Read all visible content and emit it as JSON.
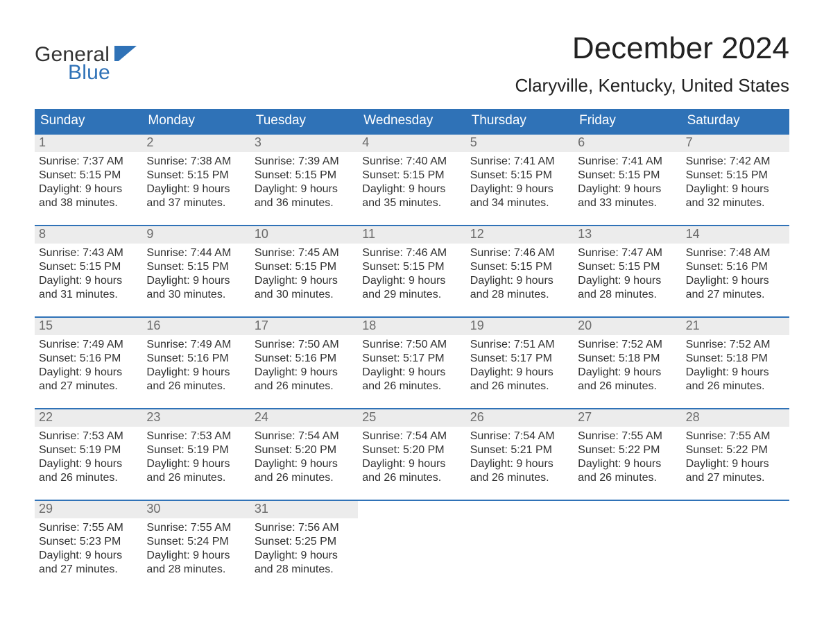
{
  "colors": {
    "accent": "#2f72b7",
    "header_text": "#ffffff",
    "day_num_bg": "#ececec",
    "day_num_color": "#6b6b6b",
    "body_text": "#313131",
    "page_bg": "#ffffff"
  },
  "logo": {
    "line1": "General",
    "line2": "Blue"
  },
  "title": "December 2024",
  "location": "Claryville, Kentucky, United States",
  "days_of_week": [
    "Sunday",
    "Monday",
    "Tuesday",
    "Wednesday",
    "Thursday",
    "Friday",
    "Saturday"
  ],
  "labels": {
    "sunrise": "Sunrise:",
    "sunset": "Sunset:",
    "daylight": "Daylight:"
  },
  "first_weekday_index": 0,
  "days": [
    {
      "n": 1,
      "sunrise": "7:37 AM",
      "sunset": "5:15 PM",
      "daylight": "9 hours and 38 minutes."
    },
    {
      "n": 2,
      "sunrise": "7:38 AM",
      "sunset": "5:15 PM",
      "daylight": "9 hours and 37 minutes."
    },
    {
      "n": 3,
      "sunrise": "7:39 AM",
      "sunset": "5:15 PM",
      "daylight": "9 hours and 36 minutes."
    },
    {
      "n": 4,
      "sunrise": "7:40 AM",
      "sunset": "5:15 PM",
      "daylight": "9 hours and 35 minutes."
    },
    {
      "n": 5,
      "sunrise": "7:41 AM",
      "sunset": "5:15 PM",
      "daylight": "9 hours and 34 minutes."
    },
    {
      "n": 6,
      "sunrise": "7:41 AM",
      "sunset": "5:15 PM",
      "daylight": "9 hours and 33 minutes."
    },
    {
      "n": 7,
      "sunrise": "7:42 AM",
      "sunset": "5:15 PM",
      "daylight": "9 hours and 32 minutes."
    },
    {
      "n": 8,
      "sunrise": "7:43 AM",
      "sunset": "5:15 PM",
      "daylight": "9 hours and 31 minutes."
    },
    {
      "n": 9,
      "sunrise": "7:44 AM",
      "sunset": "5:15 PM",
      "daylight": "9 hours and 30 minutes."
    },
    {
      "n": 10,
      "sunrise": "7:45 AM",
      "sunset": "5:15 PM",
      "daylight": "9 hours and 30 minutes."
    },
    {
      "n": 11,
      "sunrise": "7:46 AM",
      "sunset": "5:15 PM",
      "daylight": "9 hours and 29 minutes."
    },
    {
      "n": 12,
      "sunrise": "7:46 AM",
      "sunset": "5:15 PM",
      "daylight": "9 hours and 28 minutes."
    },
    {
      "n": 13,
      "sunrise": "7:47 AM",
      "sunset": "5:15 PM",
      "daylight": "9 hours and 28 minutes."
    },
    {
      "n": 14,
      "sunrise": "7:48 AM",
      "sunset": "5:16 PM",
      "daylight": "9 hours and 27 minutes."
    },
    {
      "n": 15,
      "sunrise": "7:49 AM",
      "sunset": "5:16 PM",
      "daylight": "9 hours and 27 minutes."
    },
    {
      "n": 16,
      "sunrise": "7:49 AM",
      "sunset": "5:16 PM",
      "daylight": "9 hours and 26 minutes."
    },
    {
      "n": 17,
      "sunrise": "7:50 AM",
      "sunset": "5:16 PM",
      "daylight": "9 hours and 26 minutes."
    },
    {
      "n": 18,
      "sunrise": "7:50 AM",
      "sunset": "5:17 PM",
      "daylight": "9 hours and 26 minutes."
    },
    {
      "n": 19,
      "sunrise": "7:51 AM",
      "sunset": "5:17 PM",
      "daylight": "9 hours and 26 minutes."
    },
    {
      "n": 20,
      "sunrise": "7:52 AM",
      "sunset": "5:18 PM",
      "daylight": "9 hours and 26 minutes."
    },
    {
      "n": 21,
      "sunrise": "7:52 AM",
      "sunset": "5:18 PM",
      "daylight": "9 hours and 26 minutes."
    },
    {
      "n": 22,
      "sunrise": "7:53 AM",
      "sunset": "5:19 PM",
      "daylight": "9 hours and 26 minutes."
    },
    {
      "n": 23,
      "sunrise": "7:53 AM",
      "sunset": "5:19 PM",
      "daylight": "9 hours and 26 minutes."
    },
    {
      "n": 24,
      "sunrise": "7:54 AM",
      "sunset": "5:20 PM",
      "daylight": "9 hours and 26 minutes."
    },
    {
      "n": 25,
      "sunrise": "7:54 AM",
      "sunset": "5:20 PM",
      "daylight": "9 hours and 26 minutes."
    },
    {
      "n": 26,
      "sunrise": "7:54 AM",
      "sunset": "5:21 PM",
      "daylight": "9 hours and 26 minutes."
    },
    {
      "n": 27,
      "sunrise": "7:55 AM",
      "sunset": "5:22 PM",
      "daylight": "9 hours and 26 minutes."
    },
    {
      "n": 28,
      "sunrise": "7:55 AM",
      "sunset": "5:22 PM",
      "daylight": "9 hours and 27 minutes."
    },
    {
      "n": 29,
      "sunrise": "7:55 AM",
      "sunset": "5:23 PM",
      "daylight": "9 hours and 27 minutes."
    },
    {
      "n": 30,
      "sunrise": "7:55 AM",
      "sunset": "5:24 PM",
      "daylight": "9 hours and 28 minutes."
    },
    {
      "n": 31,
      "sunrise": "7:56 AM",
      "sunset": "5:25 PM",
      "daylight": "9 hours and 28 minutes."
    }
  ]
}
